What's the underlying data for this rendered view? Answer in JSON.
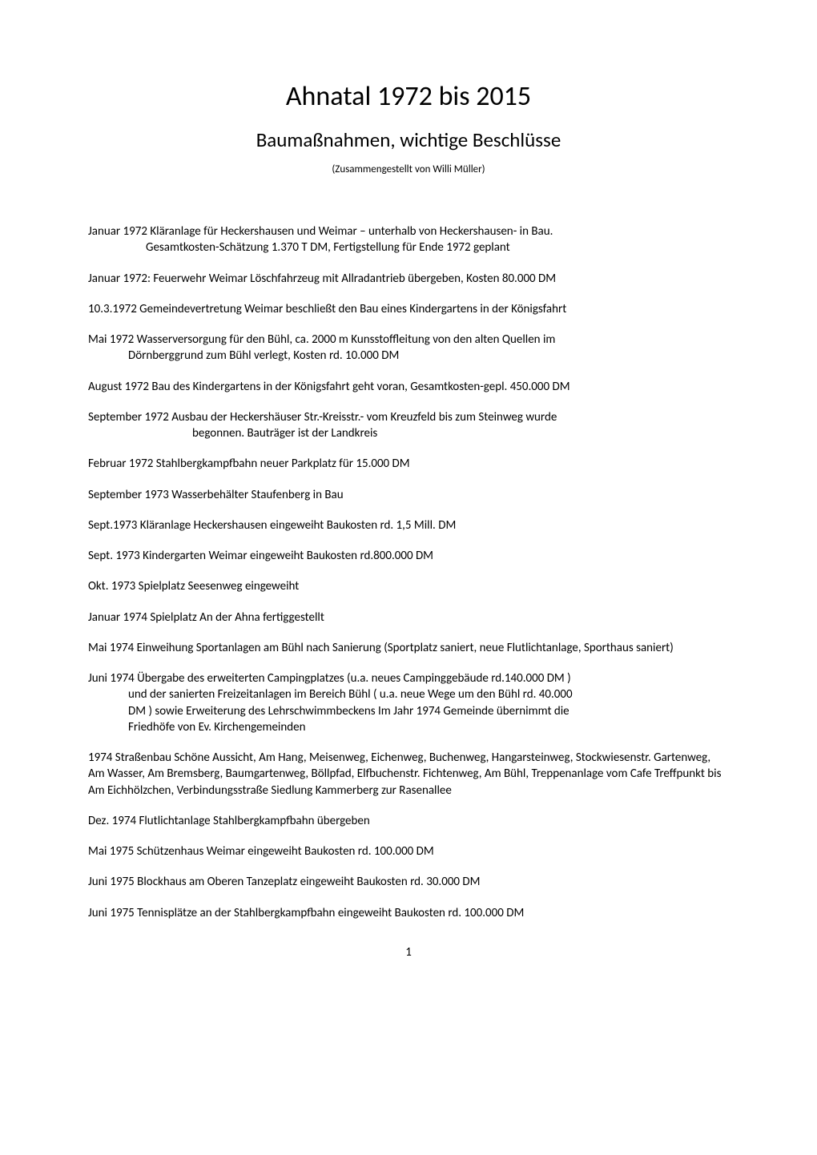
{
  "title": {
    "main": "Ahnatal 1972 bis 2015",
    "sub": "Baumaßnahmen, wichtige Beschlüsse",
    "author": "(Zusammengestellt von Willi Müller)"
  },
  "entries": [
    {
      "lines": [
        "Januar 1972 Kläranlage für Heckershausen und Weimar – unterhalb von Heckershausen- in Bau.",
        "Gesamtkosten-Schätzung  1.370 T DM, Fertigstellung für Ende 1972 geplant"
      ],
      "indent_after_first": true
    },
    {
      "lines": [
        "Januar 1972: Feuerwehr Weimar Löschfahrzeug mit Allradantrieb übergeben, Kosten 80.000 DM"
      ]
    },
    {
      "lines": [
        "10.3.1972  Gemeindevertretung Weimar beschließt den Bau eines Kindergartens in der Königsfahrt"
      ]
    },
    {
      "lines": [
        "Mai 1972 Wasserversorgung für den Bühl, ca. 2000 m Kunsstoffleitung von den alten Quellen im",
        "Dörnberggrund zum Bühl verlegt, Kosten  rd. 10.000 DM"
      ],
      "indent_after_first": "indent2"
    },
    {
      "lines": [
        "August 1972 Bau des Kindergartens in der Königsfahrt geht voran, Gesamtkosten-gepl. 450.000 DM"
      ]
    },
    {
      "lines": [
        "September 1972 Ausbau der Heckershäuser Str.-Kreisstr.- vom Kreuzfeld bis zum Steinweg wurde",
        "begonnen. Bauträger ist der Landkreis"
      ],
      "indent_after_first": "indent3"
    },
    {
      "lines": [
        "Februar 1972 Stahlbergkampfbahn neuer Parkplatz für 15.000 DM"
      ]
    },
    {
      "lines": [
        "September 1973 Wasserbehälter Staufenberg in Bau"
      ]
    },
    {
      "lines": [
        "Sept.1973 Kläranlage Heckershausen eingeweiht Baukosten rd. 1,5 Mill. DM"
      ]
    },
    {
      "lines": [
        "Sept. 1973 Kindergarten Weimar eingeweiht  Baukosten rd.800.000 DM"
      ]
    },
    {
      "lines": [
        "Okt. 1973 Spielplatz Seesenweg eingeweiht"
      ]
    },
    {
      "lines": [
        "Januar 1974 Spielplatz An der Ahna fertiggestellt"
      ]
    },
    {
      "lines": [
        "Mai 1974 Einweihung Sportanlagen am Bühl nach Sanierung (Sportplatz saniert, neue Flutlichtanlage, Sporthaus saniert)"
      ]
    },
    {
      "lines": [
        "Juni 1974 Übergabe des erweiterten Campingplatzes (u.a. neues Campinggebäude rd.140.000 DM )",
        "und der sanierten Freizeitanlagen im Bereich Bühl ( u.a. neue Wege um den Bühl rd. 40.000",
        "DM ) sowie Erweiterung des Lehrschwimmbeckens Im Jahr 1974 Gemeinde übernimmt die",
        "Friedhöfe von Ev. Kirchengemeinden"
      ],
      "indent_after_first": "indent2"
    },
    {
      "lines": [
        "1974 Straßenbau Schöne Aussicht, Am Hang, Meisenweg, Eichenweg, Buchenweg, Hangarsteinweg, Stockwiesenstr. Gartenweg, Am Wasser, Am Bremsberg, Baumgartenweg, Böllpfad, Elfbuchenstr. Fichtenweg, Am Bühl, Treppenanlage vom Cafe Treffpunkt bis Am Eichhölzchen, Verbindungsstraße Siedlung Kammerberg zur Rasenallee"
      ]
    },
    {
      "lines": [
        "Dez. 1974 Flutlichtanlage Stahlbergkampfbahn übergeben"
      ]
    },
    {
      "lines": [
        "Mai 1975 Schützenhaus Weimar eingeweiht  Baukosten rd. 100.000 DM"
      ]
    },
    {
      "lines": [
        "Juni 1975 Blockhaus am Oberen Tanzeplatz eingeweiht Baukosten rd. 30.000 DM"
      ]
    },
    {
      "lines": [
        "Juni 1975 Tennisplätze an der Stahlbergkampfbahn eingeweiht  Baukosten rd. 100.000 DM"
      ]
    }
  ],
  "page_number": "1",
  "colors": {
    "background": "#ffffff",
    "text": "#000000"
  },
  "fonts": {
    "title_main_size": 34,
    "title_sub_size": 25,
    "title_author_size": 13,
    "body_size": 15
  }
}
